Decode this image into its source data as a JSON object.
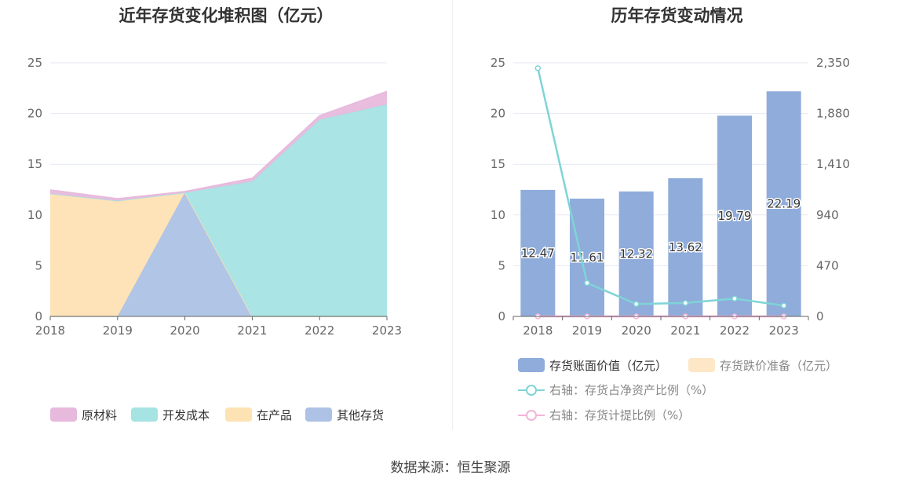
{
  "source_text": "数据来源：恒生聚源",
  "colors": {
    "raw_material": "#e7b9dc",
    "dev_cost": "#a6e3e3",
    "in_product": "#fde2b3",
    "other": "#adc2e5",
    "bar": "#8facdb",
    "bar_reserve": "#fde7c6",
    "line_ratio": "#7fd4d6",
    "line_provision": "#f2b5d9",
    "grid": "#e6e9f2",
    "axis": "#666666"
  },
  "chart_data": [
    {
      "type": "area",
      "title": "近年存货变化堆积图（亿元）",
      "x": [
        "2018",
        "2019",
        "2020",
        "2021",
        "2022",
        "2023"
      ],
      "ylim": [
        0,
        25
      ],
      "y_ticks": [
        "0",
        "5",
        "10",
        "15",
        "20",
        "25"
      ],
      "stacked": true,
      "grid": true,
      "legend_position": "bottom",
      "series": [
        {
          "name": "其他存货",
          "color_key": "other",
          "values": [
            0,
            0,
            12.2,
            0,
            0,
            0
          ]
        },
        {
          "name": "在产品",
          "color_key": "in_product",
          "values": [
            12.1,
            11.4,
            0,
            0,
            0,
            0
          ]
        },
        {
          "name": "开发成本",
          "color_key": "dev_cost",
          "values": [
            0,
            0,
            0,
            13.3,
            19.4,
            20.9
          ]
        },
        {
          "name": "原材料",
          "color_key": "raw_material",
          "values": [
            0.37,
            0.21,
            0.12,
            0.32,
            0.39,
            1.29
          ]
        }
      ],
      "legend_order": [
        "原材料",
        "开发成本",
        "在产品",
        "其他存货"
      ]
    },
    {
      "type": "bar",
      "title": "历年存货变动情况",
      "categories": [
        "2018",
        "2019",
        "2020",
        "2021",
        "2022",
        "2023"
      ],
      "ylim": [
        0,
        25
      ],
      "y_ticks": [
        "0",
        "5",
        "10",
        "15",
        "20",
        "25"
      ],
      "y2lim": [
        0,
        2350
      ],
      "y2_ticks": [
        "0",
        "470",
        "940",
        "1,410",
        "1,880",
        "2,350"
      ],
      "grid": true,
      "legend_position": "bottom",
      "series": [
        {
          "name": "存货账面价值（亿元）",
          "kind": "bar",
          "axis": "left",
          "color_key": "bar",
          "values": [
            12.47,
            11.61,
            12.32,
            13.62,
            19.79,
            22.19
          ],
          "labels": [
            "12.47",
            "11.61",
            "12.32",
            "13.62",
            "19.79",
            "22.19"
          ]
        },
        {
          "name": "存货跌价准备（亿元）",
          "kind": "bar",
          "axis": "left",
          "color_key": "bar_reserve",
          "values": [
            0,
            0,
            0,
            0,
            0,
            0
          ]
        },
        {
          "name": "右轴：存货占净资产比例（%）",
          "kind": "line",
          "axis": "right",
          "color_key": "line_ratio",
          "values": [
            2300,
            310,
            115,
            125,
            165,
            100
          ]
        },
        {
          "name": "右轴：存货计提比例（%）",
          "kind": "line",
          "axis": "right",
          "color_key": "line_provision",
          "values": [
            0,
            0,
            0,
            0,
            0,
            0
          ]
        }
      ]
    }
  ]
}
